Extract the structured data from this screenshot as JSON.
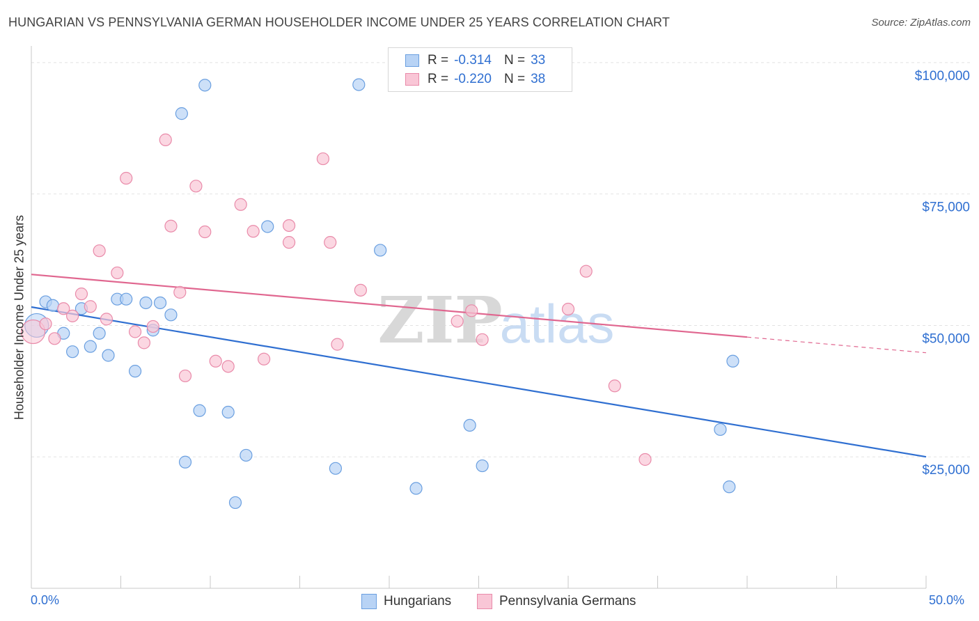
{
  "title": "HUNGARIAN VS PENNSYLVANIA GERMAN HOUSEHOLDER INCOME UNDER 25 YEARS CORRELATION CHART",
  "source": "Source: ZipAtlas.com",
  "watermark": {
    "zip": "ZIP",
    "atlas": "atlas"
  },
  "legend": {
    "rows": [
      {
        "r_label": "R =",
        "r_value": "-0.314",
        "n_label": "N =",
        "n_value": "33"
      },
      {
        "r_label": "R =",
        "r_value": "-0.220",
        "n_label": "N =",
        "n_value": "38"
      }
    ]
  },
  "bottom_legend": {
    "hungarians": "Hungarians",
    "penn_germans": "Pennsylvania Germans"
  },
  "x_axis": {
    "min_label": "0.0%",
    "max_label": "50.0%"
  },
  "colors": {
    "blue_fill": "#b8d3f5",
    "blue_stroke": "#6a9fe0",
    "blue_line": "#2f6fd1",
    "pink_fill": "#f9c6d6",
    "pink_stroke": "#e98aa9",
    "pink_line": "#e0668f",
    "grid": "#e2e2e2",
    "tick_text": "#2f6fd1"
  },
  "chart_data": {
    "type": "scatter",
    "title": "HUNGARIAN VS PENNSYLVANIA GERMAN HOUSEHOLDER INCOME UNDER 25 YEARS CORRELATION CHART",
    "xlabel": "",
    "ylabel": "Householder Income Under 25 years",
    "xlim": [
      0,
      50
    ],
    "ylim": [
      0,
      102500
    ],
    "y_ticks": [
      25000,
      50000,
      75000,
      100000
    ],
    "y_tick_labels": [
      "$25,000",
      "$50,000",
      "$75,000",
      "$100,000"
    ],
    "x_tick_labels": [
      "0.0%",
      "50.0%"
    ],
    "series": [
      {
        "name": "Hungarians",
        "color": "#6a9fe0",
        "trend": {
          "x": [
            0,
            50
          ],
          "y": [
            53500,
            25000
          ],
          "solid_until": 50
        },
        "points": [
          {
            "x": 0.3,
            "y": 50000,
            "big": true
          },
          {
            "x": 0.8,
            "y": 54500
          },
          {
            "x": 1.2,
            "y": 53800
          },
          {
            "x": 1.8,
            "y": 48500
          },
          {
            "x": 2.3,
            "y": 45000
          },
          {
            "x": 2.8,
            "y": 53200
          },
          {
            "x": 3.3,
            "y": 46000
          },
          {
            "x": 3.8,
            "y": 48500
          },
          {
            "x": 4.3,
            "y": 44300
          },
          {
            "x": 4.8,
            "y": 55000
          },
          {
            "x": 5.3,
            "y": 55000
          },
          {
            "x": 5.8,
            "y": 41300
          },
          {
            "x": 6.4,
            "y": 54300
          },
          {
            "x": 6.8,
            "y": 49100
          },
          {
            "x": 7.2,
            "y": 54300
          },
          {
            "x": 7.8,
            "y": 52000
          },
          {
            "x": 8.4,
            "y": 90300
          },
          {
            "x": 8.6,
            "y": 24000
          },
          {
            "x": 9.4,
            "y": 33800
          },
          {
            "x": 9.7,
            "y": 95700
          },
          {
            "x": 11.0,
            "y": 33500
          },
          {
            "x": 11.4,
            "y": 16300
          },
          {
            "x": 12.0,
            "y": 25300
          },
          {
            "x": 13.2,
            "y": 68800
          },
          {
            "x": 17.0,
            "y": 22800
          },
          {
            "x": 18.3,
            "y": 95800
          },
          {
            "x": 19.5,
            "y": 64300
          },
          {
            "x": 21.5,
            "y": 19000
          },
          {
            "x": 24.5,
            "y": 31000
          },
          {
            "x": 25.2,
            "y": 23300
          },
          {
            "x": 38.5,
            "y": 30200
          },
          {
            "x": 39.2,
            "y": 43200
          },
          {
            "x": 39.0,
            "y": 19300
          }
        ]
      },
      {
        "name": "Pennsylvania Germans",
        "color": "#e98aa9",
        "trend": {
          "x": [
            0,
            50
          ],
          "y": [
            59700,
            44800
          ],
          "solid_until": 40
        },
        "points": [
          {
            "x": 0.1,
            "y": 48800,
            "big": true
          },
          {
            "x": 0.8,
            "y": 50300
          },
          {
            "x": 1.3,
            "y": 47500
          },
          {
            "x": 1.8,
            "y": 53200
          },
          {
            "x": 2.3,
            "y": 51800
          },
          {
            "x": 2.8,
            "y": 56000
          },
          {
            "x": 3.3,
            "y": 53600
          },
          {
            "x": 3.8,
            "y": 64200
          },
          {
            "x": 4.2,
            "y": 51200
          },
          {
            "x": 4.8,
            "y": 60000
          },
          {
            "x": 5.3,
            "y": 78000
          },
          {
            "x": 5.8,
            "y": 48800
          },
          {
            "x": 6.3,
            "y": 46700
          },
          {
            "x": 6.8,
            "y": 49800
          },
          {
            "x": 7.5,
            "y": 85300
          },
          {
            "x": 7.8,
            "y": 68900
          },
          {
            "x": 8.3,
            "y": 56300
          },
          {
            "x": 8.6,
            "y": 40400
          },
          {
            "x": 9.2,
            "y": 76500
          },
          {
            "x": 9.7,
            "y": 67800
          },
          {
            "x": 10.3,
            "y": 43200
          },
          {
            "x": 11.0,
            "y": 42200
          },
          {
            "x": 11.7,
            "y": 73000
          },
          {
            "x": 12.4,
            "y": 67900
          },
          {
            "x": 13.0,
            "y": 43600
          },
          {
            "x": 14.4,
            "y": 69000
          },
          {
            "x": 14.4,
            "y": 65800
          },
          {
            "x": 16.3,
            "y": 81700
          },
          {
            "x": 16.7,
            "y": 65800
          },
          {
            "x": 17.1,
            "y": 46400
          },
          {
            "x": 18.4,
            "y": 56700
          },
          {
            "x": 23.8,
            "y": 50800
          },
          {
            "x": 24.6,
            "y": 52800
          },
          {
            "x": 25.2,
            "y": 47300
          },
          {
            "x": 30.0,
            "y": 53100
          },
          {
            "x": 31.0,
            "y": 60300
          },
          {
            "x": 32.6,
            "y": 38500
          },
          {
            "x": 34.3,
            "y": 24500
          }
        ]
      }
    ]
  }
}
